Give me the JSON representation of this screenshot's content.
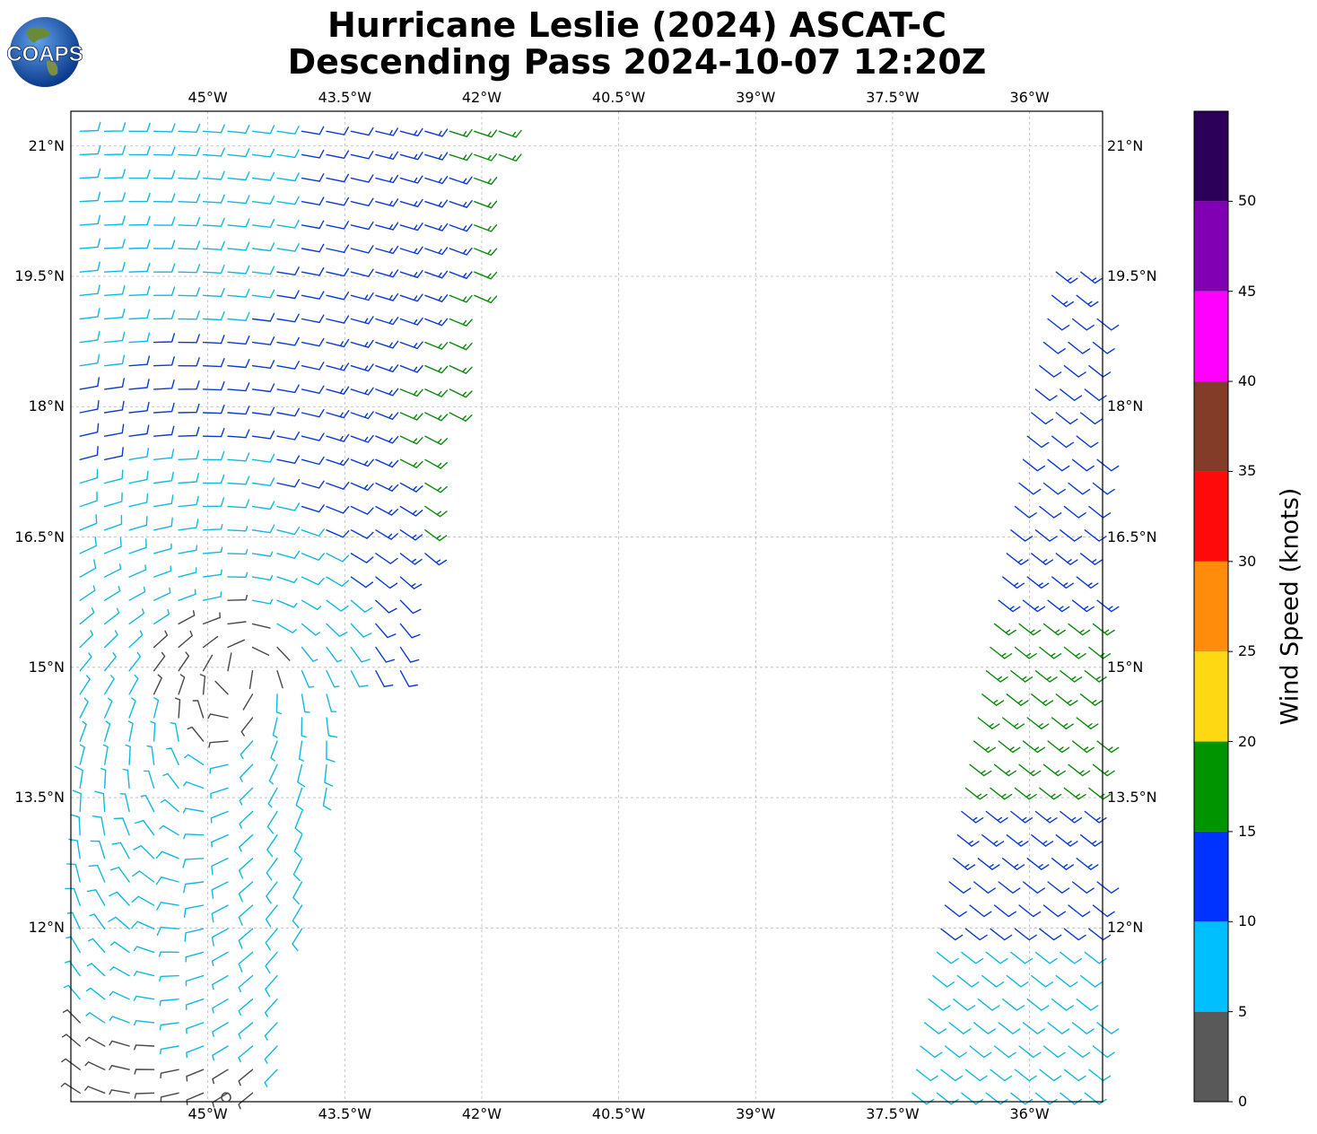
{
  "title": {
    "line1": "Hurricane Leslie (2024) ASCAT-C",
    "line2": "Descending Pass 2024-10-07 12:20Z"
  },
  "logo": {
    "text": "COAPS"
  },
  "map": {
    "lon_range": [
      -46.5,
      -35.2
    ],
    "lat_range": [
      10.0,
      21.4
    ],
    "lon_ticks": [
      {
        "value": -45.0,
        "label": "45°W"
      },
      {
        "value": -43.5,
        "label": "43.5°W"
      },
      {
        "value": -42.0,
        "label": "42°W"
      },
      {
        "value": -40.5,
        "label": "40.5°W"
      },
      {
        "value": -39.0,
        "label": "39°W"
      },
      {
        "value": -37.5,
        "label": "37.5°W"
      },
      {
        "value": -36.0,
        "label": "36°W"
      }
    ],
    "lat_ticks": [
      {
        "value": 21.0,
        "label": "21°N"
      },
      {
        "value": 19.5,
        "label": "19.5°N"
      },
      {
        "value": 18.0,
        "label": "18°N"
      },
      {
        "value": 16.5,
        "label": "16.5°N"
      },
      {
        "value": 15.0,
        "label": "15°N"
      },
      {
        "value": 13.5,
        "label": "13.5°N"
      },
      {
        "value": 12.0,
        "label": "12°N"
      }
    ],
    "gridlines": true,
    "calm_marker": {
      "lon": -44.8,
      "lat": 10.05
    }
  },
  "colorbar": {
    "label": "Wind Speed (knots)",
    "bins": [
      {
        "from": 0,
        "to": 5,
        "color": "#595959"
      },
      {
        "from": 5,
        "to": 10,
        "color": "#00bfff"
      },
      {
        "from": 10,
        "to": 15,
        "color": "#0033ff"
      },
      {
        "from": 15,
        "to": 20,
        "color": "#009400"
      },
      {
        "from": 20,
        "to": 25,
        "color": "#ffd814"
      },
      {
        "from": 25,
        "to": 30,
        "color": "#ff8c0a"
      },
      {
        "from": 30,
        "to": 35,
        "color": "#ff0a0a"
      },
      {
        "from": 35,
        "to": 40,
        "color": "#823c28"
      },
      {
        "from": 40,
        "to": 45,
        "color": "#ff00ff"
      },
      {
        "from": 45,
        "to": 50,
        "color": "#8200b4"
      },
      {
        "from": 50,
        "to": 55,
        "color": "#2c0058"
      }
    ],
    "ticks": [
      "0",
      "5",
      "10",
      "15",
      "20",
      "25",
      "30",
      "35",
      "40",
      "45",
      "50"
    ]
  },
  "vector_colors": {
    "calm": "#474747",
    "light": "#12b8e0",
    "moderate": "#0a3ad0",
    "fresh": "#0b8a0b",
    "strong": "#f2c200"
  }
}
